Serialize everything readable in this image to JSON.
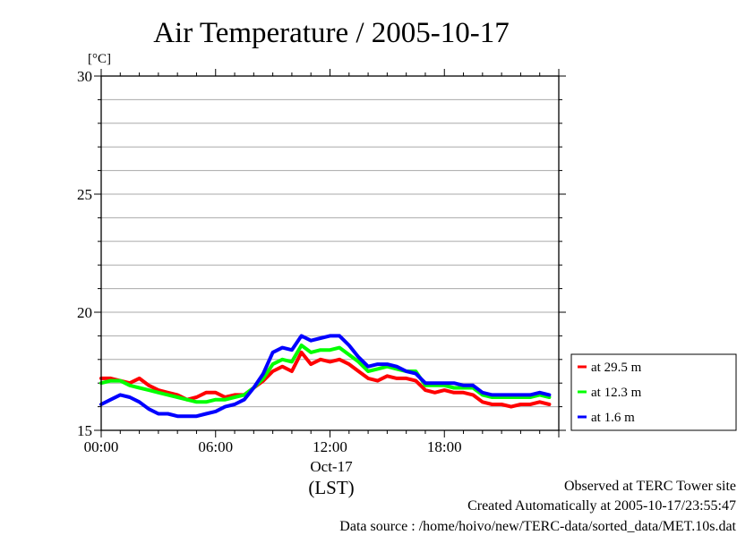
{
  "chart_data": {
    "type": "line",
    "title": "Air Temperature / 2005-10-17",
    "ylabel": "[°C]",
    "xlabel": "(LST)",
    "ylim": [
      15,
      30
    ],
    "yticks": [
      15,
      20,
      25,
      30
    ],
    "xlim": [
      0,
      24
    ],
    "xticks": [
      {
        "x": 0,
        "label": "00:00"
      },
      {
        "x": 6,
        "label": "06:00"
      },
      {
        "x": 12,
        "label": "12:00"
      },
      {
        "x": 18,
        "label": "18:00"
      }
    ],
    "date_label": "Oct-17",
    "grid": true,
    "legend_position": "right",
    "series": [
      {
        "name": "at 29.5 m",
        "color": "#ff0000",
        "x": [
          0,
          0.5,
          1,
          1.5,
          2,
          2.5,
          3,
          3.5,
          4,
          4.5,
          5,
          5.5,
          6,
          6.5,
          7,
          7.5,
          8,
          8.5,
          9,
          9.5,
          10,
          10.5,
          11,
          11.5,
          12,
          12.5,
          13,
          13.5,
          14,
          14.5,
          15,
          15.5,
          16,
          16.5,
          17,
          17.5,
          18,
          18.5,
          19,
          19.5,
          20,
          20.5,
          21,
          21.5,
          22,
          22.5,
          23,
          23.5
        ],
        "values": [
          17.2,
          17.2,
          17.1,
          17.0,
          17.2,
          16.9,
          16.7,
          16.6,
          16.5,
          16.3,
          16.4,
          16.6,
          16.6,
          16.4,
          16.5,
          16.5,
          16.8,
          17.1,
          17.5,
          17.7,
          17.5,
          18.3,
          17.8,
          18.0,
          17.9,
          18.0,
          17.8,
          17.5,
          17.2,
          17.1,
          17.3,
          17.2,
          17.2,
          17.1,
          16.7,
          16.6,
          16.7,
          16.6,
          16.6,
          16.5,
          16.2,
          16.1,
          16.1,
          16.0,
          16.1,
          16.1,
          16.2,
          16.1
        ]
      },
      {
        "name": "at 12.3 m",
        "color": "#00ff00",
        "x": [
          0,
          0.5,
          1,
          1.5,
          2,
          2.5,
          3,
          3.5,
          4,
          4.5,
          5,
          5.5,
          6,
          6.5,
          7,
          7.5,
          8,
          8.5,
          9,
          9.5,
          10,
          10.5,
          11,
          11.5,
          12,
          12.5,
          13,
          13.5,
          14,
          14.5,
          15,
          15.5,
          16,
          16.5,
          17,
          17.5,
          18,
          18.5,
          19,
          19.5,
          20,
          20.5,
          21,
          21.5,
          22,
          22.5,
          23,
          23.5
        ],
        "values": [
          17.0,
          17.1,
          17.1,
          16.9,
          16.8,
          16.7,
          16.6,
          16.5,
          16.4,
          16.3,
          16.2,
          16.2,
          16.3,
          16.3,
          16.4,
          16.5,
          16.8,
          17.2,
          17.8,
          18.0,
          17.9,
          18.6,
          18.3,
          18.4,
          18.4,
          18.5,
          18.2,
          17.9,
          17.5,
          17.6,
          17.7,
          17.6,
          17.5,
          17.5,
          16.9,
          16.9,
          16.9,
          16.8,
          16.8,
          16.8,
          16.5,
          16.4,
          16.4,
          16.4,
          16.4,
          16.4,
          16.5,
          16.4
        ]
      },
      {
        "name": "at 1.6 m",
        "color": "#0000ff",
        "x": [
          0,
          0.5,
          1,
          1.5,
          2,
          2.5,
          3,
          3.5,
          4,
          4.5,
          5,
          5.5,
          6,
          6.5,
          7,
          7.5,
          8,
          8.5,
          9,
          9.5,
          10,
          10.5,
          11,
          11.5,
          12,
          12.5,
          13,
          13.5,
          14,
          14.5,
          15,
          15.5,
          16,
          16.5,
          17,
          17.5,
          18,
          18.5,
          19,
          19.5,
          20,
          20.5,
          21,
          21.5,
          22,
          22.5,
          23,
          23.5
        ],
        "values": [
          16.1,
          16.3,
          16.5,
          16.4,
          16.2,
          15.9,
          15.7,
          15.7,
          15.6,
          15.6,
          15.6,
          15.7,
          15.8,
          16.0,
          16.1,
          16.3,
          16.8,
          17.4,
          18.3,
          18.5,
          18.4,
          19.0,
          18.8,
          18.9,
          19.0,
          19.0,
          18.6,
          18.1,
          17.7,
          17.8,
          17.8,
          17.7,
          17.5,
          17.4,
          17.0,
          17.0,
          17.0,
          17.0,
          16.9,
          16.9,
          16.6,
          16.5,
          16.5,
          16.5,
          16.5,
          16.5,
          16.6,
          16.5
        ]
      }
    ]
  },
  "footer": {
    "site": "Observed at TERC Tower site",
    "created": "Created Automatically at 2005-10-17/23:55:47",
    "source": "Data source : /home/hoivo/new/TERC-data/sorted_data/MET.10s.dat"
  }
}
